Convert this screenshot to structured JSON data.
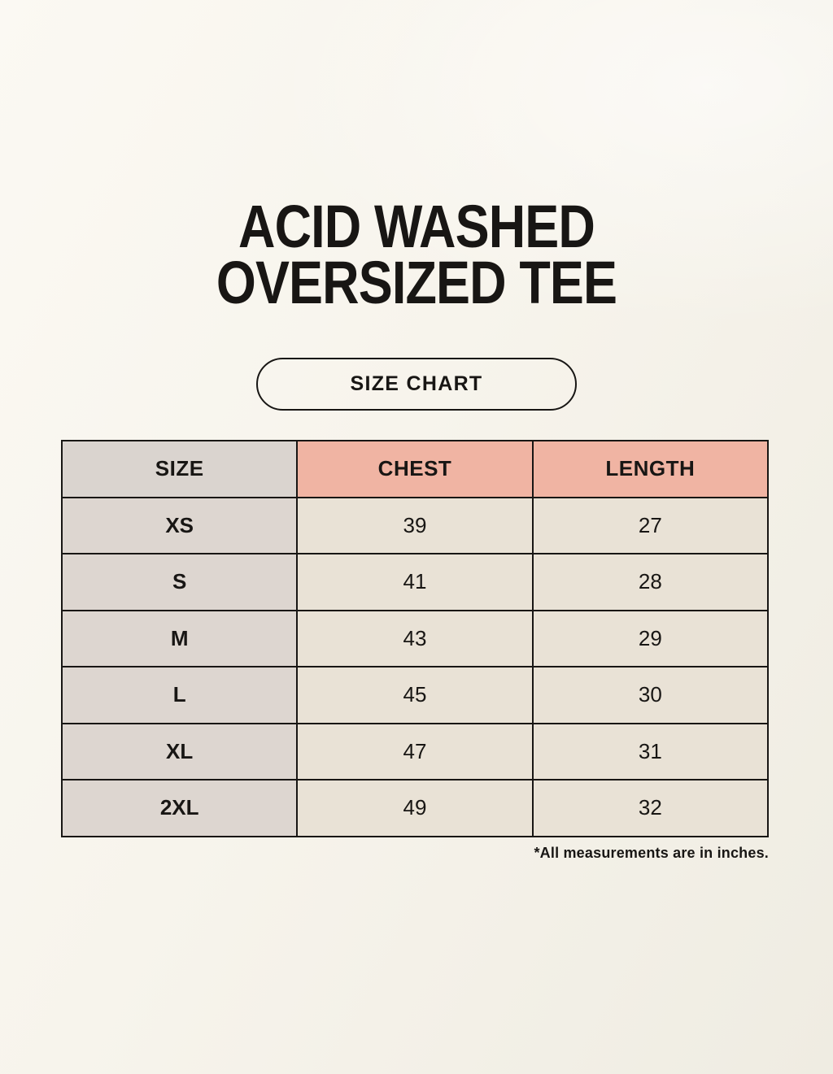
{
  "title": {
    "line1": "ACID WASHED",
    "line2": "OVERSIZED TEE"
  },
  "size_chart_button": {
    "label": "SIZE CHART"
  },
  "footnote": "*All measurements are in inches.",
  "colors": {
    "background": "#f7f4ec",
    "header_size_bg": "#dad4cf",
    "header_accent_bg": "#f0b4a3",
    "size_col_bg": "#ddd6d0",
    "data_cell_bg": "#e9e2d6",
    "border": "#181614",
    "text": "#181614"
  },
  "chart_data": {
    "type": "table",
    "title": "ACID WASHED OVERSIZED TEE",
    "columns": [
      "SIZE",
      "CHEST",
      "LENGTH"
    ],
    "rows": [
      [
        "XS",
        "39",
        "27"
      ],
      [
        "S",
        "41",
        "28"
      ],
      [
        "M",
        "43",
        "29"
      ],
      [
        "L",
        "45",
        "30"
      ],
      [
        "XL",
        "47",
        "31"
      ],
      [
        "2XL",
        "49",
        "32"
      ]
    ],
    "units": "inches",
    "footnote": "*All measurements are in inches."
  }
}
